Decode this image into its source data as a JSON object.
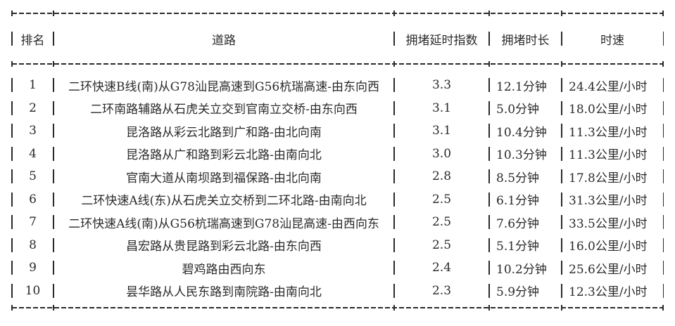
{
  "table": {
    "headers": {
      "rank": "排名",
      "road": "道路",
      "index": "拥堵延时指数",
      "duration": "拥堵时长",
      "speed": "时速"
    },
    "rows": [
      {
        "rank": "1",
        "road": "二环快速B线(南)从G78汕昆高速到G56杭瑞高速-由东向西",
        "index": "3.3",
        "duration": "12.1分钟",
        "speed": "24.4公里/小时"
      },
      {
        "rank": "2",
        "road": "二环南路辅路从石虎关立交到官南立交桥-由东向西",
        "index": "3.1",
        "duration": "5.0分钟",
        "speed": "18.0公里/小时"
      },
      {
        "rank": "3",
        "road": "昆洛路从彩云北路到广和路-由北向南",
        "index": "3.1",
        "duration": "10.4分钟",
        "speed": "11.3公里/小时"
      },
      {
        "rank": "4",
        "road": "昆洛路从广和路到彩云北路-由南向北",
        "index": "3.0",
        "duration": "10.3分钟",
        "speed": "11.3公里/小时"
      },
      {
        "rank": "5",
        "road": "官南大道从南坝路到福保路-由北向南",
        "index": "2.8",
        "duration": "8.5分钟",
        "speed": "17.8公里/小时"
      },
      {
        "rank": "6",
        "road": "二环快速A线(东)从石虎关立交桥到二环北路-由南向北",
        "index": "2.5",
        "duration": "6.1分钟",
        "speed": "31.3公里/小时"
      },
      {
        "rank": "7",
        "road": "二环快速A线(南)从G56杭瑞高速到G78汕昆高速-由西向东",
        "index": "2.5",
        "duration": "7.6分钟",
        "speed": "33.5公里/小时"
      },
      {
        "rank": "8",
        "road": "昌宏路从贵昆路到彩云北路-由东向西",
        "index": "2.5",
        "duration": "5.1分钟",
        "speed": "16.0公里/小时"
      },
      {
        "rank": "9",
        "road": "碧鸡路由西向东",
        "index": "2.4",
        "duration": "10.2分钟",
        "speed": "25.6公里/小时"
      },
      {
        "rank": "10",
        "road": "昙华路从人民东路到南院路-由南向北",
        "index": "2.3",
        "duration": "5.9分钟",
        "speed": "12.3公里/小时"
      }
    ]
  },
  "colors": {
    "text": "#2a2a2a",
    "background": "#ffffff"
  }
}
